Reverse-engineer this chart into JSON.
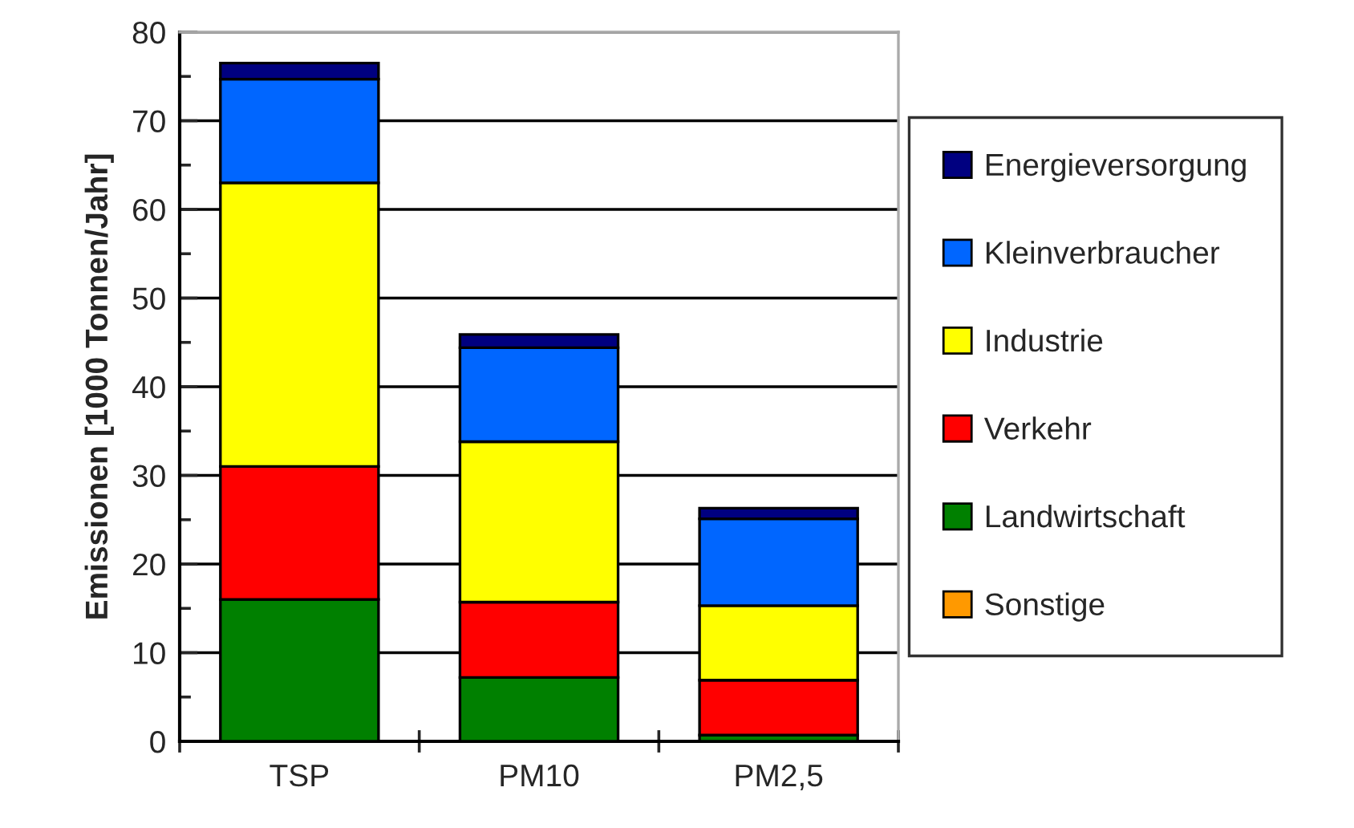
{
  "chart_data": {
    "type": "bar",
    "stacked": true,
    "ylabel": "Emissionen [1000 Tonnen/Jahr]",
    "categories": [
      "TSP",
      "PM10",
      "PM2,5"
    ],
    "series": [
      {
        "name": "Sonstige",
        "color": "#ff9900",
        "values": [
          0,
          0,
          0
        ]
      },
      {
        "name": "Landwirtschaft",
        "color": "#008000",
        "values": [
          16,
          7.2,
          0.7
        ]
      },
      {
        "name": "Verkehr",
        "color": "#ff0000",
        "values": [
          15,
          8.5,
          6.2
        ]
      },
      {
        "name": "Industrie",
        "color": "#ffff00",
        "values": [
          32,
          18.1,
          8.4
        ]
      },
      {
        "name": "Kleinverbraucher",
        "color": "#0066ff",
        "values": [
          11.7,
          10.6,
          9.8
        ]
      },
      {
        "name": "Energieversorgung",
        "color": "#000080",
        "values": [
          1.8,
          1.5,
          1.2
        ]
      }
    ],
    "ylim": [
      0,
      80
    ],
    "yticks": [
      0,
      {
        "value": 5,
        "label": null
      },
      10,
      {
        "value": 15,
        "label": null
      },
      20,
      {
        "value": 25,
        "label": null
      },
      30,
      {
        "value": 35,
        "label": null
      },
      40,
      {
        "value": 45,
        "label": null
      },
      50,
      {
        "value": 55,
        "label": null
      },
      60,
      {
        "value": 65,
        "label": null
      },
      70,
      {
        "value": 75,
        "label": null
      },
      80
    ],
    "grid": "y",
    "legend": "right"
  }
}
